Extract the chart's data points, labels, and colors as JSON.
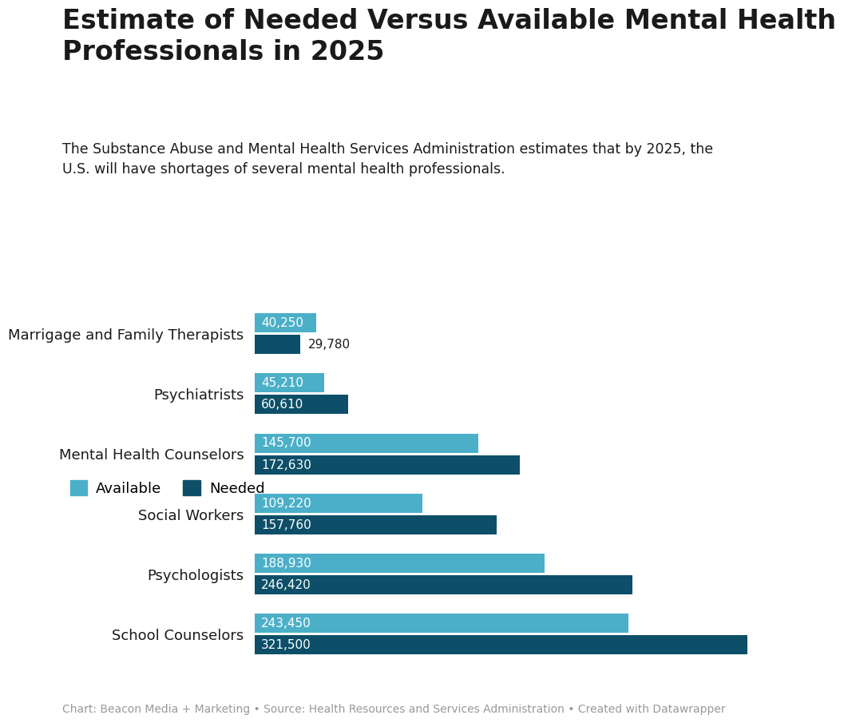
{
  "title": "Estimate of Needed Versus Available Mental Health\nProfessionals in 2025",
  "subtitle": "The Substance Abuse and Mental Health Services Administration estimates that by 2025, the\nU.S. will have shortages of several mental health professionals.",
  "footer": "Chart: Beacon Media + Marketing • Source: Health Resources and Services Administration • Created with Datawrapper",
  "categories": [
    "Marrigage and Family Therapists",
    "Psychiatrists",
    "Mental Health Counselors",
    "Social Workers",
    "Psychologists",
    "School Counselors"
  ],
  "available": [
    40250,
    45210,
    145700,
    109220,
    188930,
    243450
  ],
  "needed": [
    29780,
    60610,
    172630,
    157760,
    246420,
    321500
  ],
  "color_available": "#4bafc8",
  "color_needed": "#0d4f68",
  "background_color": "#ffffff",
  "text_color": "#1a1a1a",
  "footer_color": "#999999",
  "bar_height": 0.32,
  "bar_gap": 0.04,
  "xlim": [
    0,
    360000
  ],
  "label_inside_color": "#ffffff",
  "label_outside_color": "#1a1a1a",
  "label_fontsize": 11,
  "category_fontsize": 13,
  "legend_fontsize": 13,
  "title_fontsize": 24,
  "subtitle_fontsize": 12.5,
  "footer_fontsize": 10
}
